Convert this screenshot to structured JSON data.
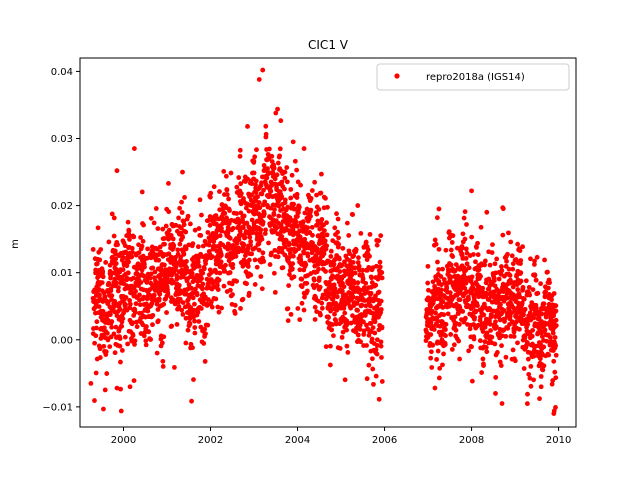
{
  "chart_data": {
    "type": "scatter",
    "title": "CIC1 V",
    "xlabel": "",
    "ylabel": "m",
    "xlim": [
      1999.0,
      2010.4
    ],
    "ylim": [
      -0.013,
      0.042
    ],
    "xticks": [
      2000,
      2002,
      2004,
      2006,
      2008,
      2010
    ],
    "xtick_labels": [
      "2000",
      "2002",
      "2004",
      "2006",
      "2008",
      "2010"
    ],
    "yticks": [
      -0.01,
      0.0,
      0.01,
      0.02,
      0.03,
      0.04
    ],
    "ytick_labels": [
      "−0.01",
      "0.00",
      "0.01",
      "0.02",
      "0.03",
      "0.04"
    ],
    "grid": false,
    "legend_position": "top-right",
    "series": [
      {
        "name": "repro2018a (IGS14)",
        "color": "#ff0000",
        "marker": "circle",
        "segments": [
          {
            "x_start": 1999.3,
            "x_end": 2005.95,
            "mean_trend": [
              [
                1999.3,
                0.0055
              ],
              [
                2000.0,
                0.007
              ],
              [
                2000.8,
                0.0095
              ],
              [
                2001.5,
                0.0085
              ],
              [
                2002.0,
                0.011
              ],
              [
                2002.6,
                0.015
              ],
              [
                2003.1,
                0.02
              ],
              [
                2003.6,
                0.019
              ],
              [
                2004.0,
                0.016
              ],
              [
                2004.5,
                0.011
              ],
              [
                2005.0,
                0.0085
              ],
              [
                2005.5,
                0.006
              ],
              [
                2005.95,
                0.004
              ]
            ],
            "spread": 0.0045
          },
          {
            "x_start": 2006.95,
            "x_end": 2009.95,
            "mean_trend": [
              [
                2006.95,
                0.005
              ],
              [
                2007.5,
                0.007
              ],
              [
                2008.0,
                0.0065
              ],
              [
                2008.5,
                0.006
              ],
              [
                2009.0,
                0.005
              ],
              [
                2009.5,
                0.0035
              ],
              [
                2009.95,
                0.0015
              ]
            ],
            "spread": 0.004
          }
        ],
        "notable_points": [
          {
            "x": 2003.2,
            "y": 0.0402
          },
          {
            "x": 2003.12,
            "y": 0.0388
          },
          {
            "x": 2003.5,
            "y": 0.0338
          },
          {
            "x": 2002.85,
            "y": 0.0318
          },
          {
            "x": 2000.25,
            "y": 0.0285
          },
          {
            "x": 2003.9,
            "y": 0.0295
          },
          {
            "x": 1999.85,
            "y": 0.0252
          },
          {
            "x": 2008.0,
            "y": 0.0222
          },
          {
            "x": 2007.25,
            "y": 0.0195
          },
          {
            "x": 2008.35,
            "y": 0.019
          },
          {
            "x": 2004.15,
            "y": 0.0285
          },
          {
            "x": 1999.85,
            "y": -0.0072
          },
          {
            "x": 2000.15,
            "y": -0.007
          },
          {
            "x": 1999.25,
            "y": -0.0065
          },
          {
            "x": 2005.6,
            "y": -0.0058
          },
          {
            "x": 2008.55,
            "y": -0.008
          },
          {
            "x": 2008.7,
            "y": -0.0095
          },
          {
            "x": 2009.6,
            "y": -0.007
          },
          {
            "x": 2009.9,
            "y": -0.0106
          }
        ]
      }
    ]
  }
}
